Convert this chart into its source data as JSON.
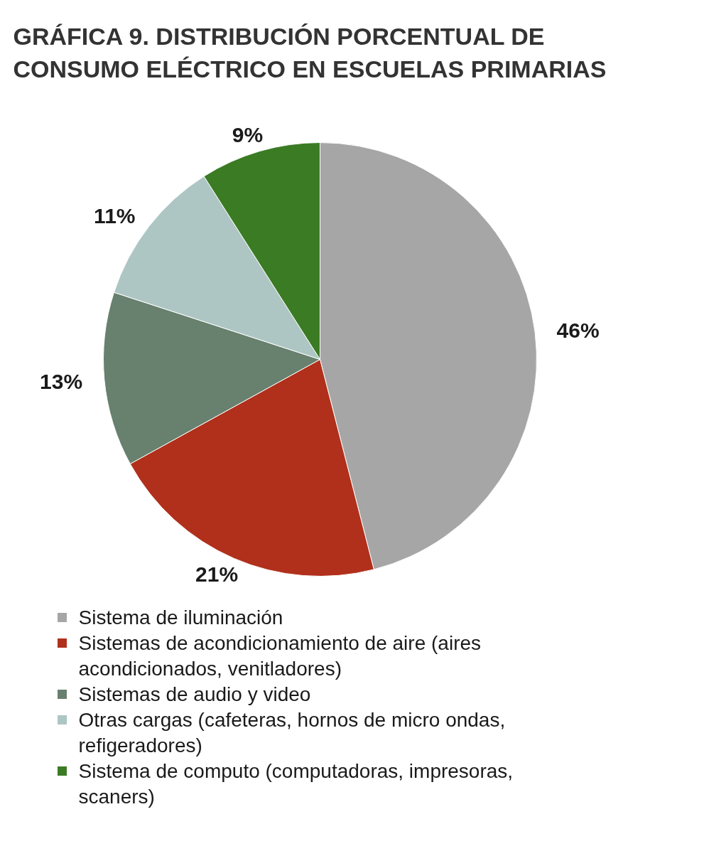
{
  "chart_data": {
    "type": "pie",
    "title": "GRÁFICA 9. DISTRIBUCIÓN PORCENTUAL DE CONSUMO ELÉCTRICO EN ESCUELAS PRIMARIAS",
    "categories": [
      "Sistema de iluminación",
      "Sistemas de acondicionamiento de aire (aires acondicionados, venitladores)",
      "Sistemas de audio y video",
      "Otras cargas (cafeteras, hornos de micro ondas, refigeradores)",
      "Sistema de computo (computadoras, impresoras, scaners)"
    ],
    "values": [
      46,
      21,
      13,
      11,
      9
    ],
    "value_labels": [
      "46%",
      "21%",
      "13%",
      "11%",
      "9%"
    ],
    "colors": [
      "#a6a6a6",
      "#b0301c",
      "#68806e",
      "#adc6c4",
      "#3b7b24"
    ],
    "legend": "bottom"
  }
}
